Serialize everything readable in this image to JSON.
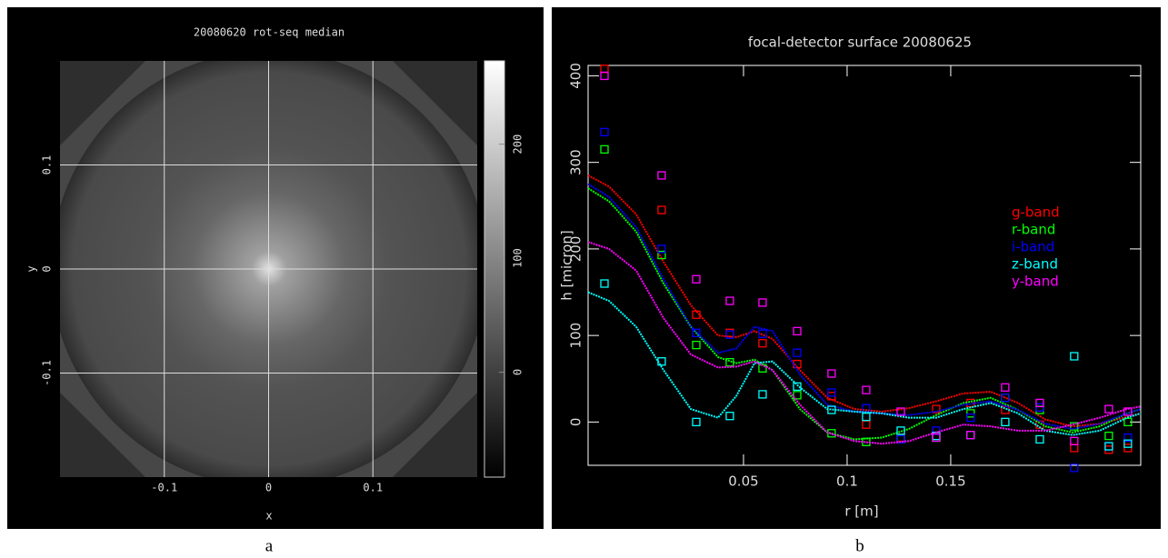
{
  "chart_data": [
    {
      "type": "image",
      "title": "20080620 rot-seq median",
      "x_label": "x",
      "y_label": "y",
      "xlim": [
        -0.2,
        0.2
      ],
      "ylim": [
        -0.2,
        0.2
      ],
      "xticks": [
        -0.1,
        0,
        0.1
      ],
      "yticks": [
        -0.1,
        0,
        0.1
      ],
      "grid": true,
      "colorbar": {
        "lim": [
          -92,
          273
        ],
        "ticks": [
          0,
          100,
          200
        ]
      },
      "caption": "a"
    },
    {
      "type": "scatter",
      "title": "focal-detector surface 20080625",
      "x_label": "r [m]",
      "y_label": "h [micron]",
      "xlim": [
        -0.025,
        0.2417
      ],
      "ylim": [
        -50,
        412
      ],
      "xticks": [
        0.05,
        0.1,
        0.15
      ],
      "yticks": [
        0,
        100,
        200,
        300,
        400
      ],
      "caption": "b",
      "x": [
        -0.0171,
        0.0105,
        0.0272,
        0.0434,
        0.0592,
        0.0759,
        0.0925,
        0.1092,
        0.1259,
        0.143,
        0.1596,
        0.1763,
        0.193,
        0.2096,
        0.2263,
        0.2355
      ],
      "fit_x": [
        -0.025,
        -0.0149,
        -0.0018,
        0.0114,
        0.0246,
        0.0377,
        0.0465,
        0.0553,
        0.064,
        0.0772,
        0.0904,
        0.1035,
        0.1167,
        0.1298,
        0.143,
        0.1561,
        0.1693,
        0.1825,
        0.1956,
        0.2088,
        0.2219,
        0.2351,
        0.2417
      ],
      "series": [
        {
          "name": "g-band",
          "color": "#ff0000",
          "values": [
            408,
            245,
            124,
            103,
            91,
            67,
            30,
            -3,
            -18,
            15,
            22,
            14,
            -3,
            -30,
            -32,
            -30
          ],
          "fit": [
            285,
            272,
            240,
            185,
            135,
            100,
            98,
            105,
            96,
            60,
            28,
            15,
            12,
            16,
            24,
            33,
            35,
            22,
            3,
            -5,
            -2,
            6,
            10
          ]
        },
        {
          "name": "r-band",
          "color": "#00ff00",
          "values": [
            315,
            193,
            89,
            69,
            62,
            31,
            -13,
            -23,
            -20,
            -18,
            10,
            28,
            14,
            -5,
            -16,
            0
          ],
          "fit": [
            270,
            255,
            220,
            160,
            110,
            75,
            68,
            72,
            60,
            15,
            -12,
            -20,
            -18,
            -8,
            8,
            22,
            28,
            14,
            -5,
            -12,
            -5,
            10,
            15
          ]
        },
        {
          "name": "i-band",
          "color": "#0000ff",
          "values": [
            335,
            200,
            103,
            101,
            102,
            80,
            34,
            16,
            -20,
            -10,
            5,
            28,
            17,
            -53,
            -28,
            -18
          ],
          "fit": [
            275,
            260,
            225,
            165,
            110,
            80,
            85,
            110,
            105,
            55,
            20,
            12,
            10,
            8,
            12,
            20,
            24,
            14,
            -2,
            -8,
            -2,
            10,
            15
          ]
        },
        {
          "name": "z-band",
          "color": "#00ffff",
          "values": [
            160,
            70,
            0,
            7,
            32,
            41,
            14,
            6,
            -10,
            -16,
            -15,
            0,
            -20,
            76,
            -28,
            -25
          ],
          "fit": [
            150,
            140,
            110,
            60,
            15,
            5,
            30,
            68,
            70,
            40,
            15,
            12,
            10,
            5,
            5,
            15,
            22,
            10,
            -10,
            -15,
            -10,
            5,
            10
          ]
        },
        {
          "name": "y-band",
          "color": "#ff00ff",
          "values": [
            400,
            285,
            165,
            140,
            138,
            105,
            56,
            37,
            12,
            -18,
            -15,
            40,
            22,
            -22,
            15,
            12
          ],
          "fit": [
            208,
            200,
            175,
            120,
            78,
            63,
            64,
            70,
            60,
            20,
            -12,
            -22,
            -25,
            -22,
            -12,
            -3,
            -5,
            -10,
            -10,
            -3,
            5,
            15,
            18
          ]
        }
      ]
    }
  ]
}
